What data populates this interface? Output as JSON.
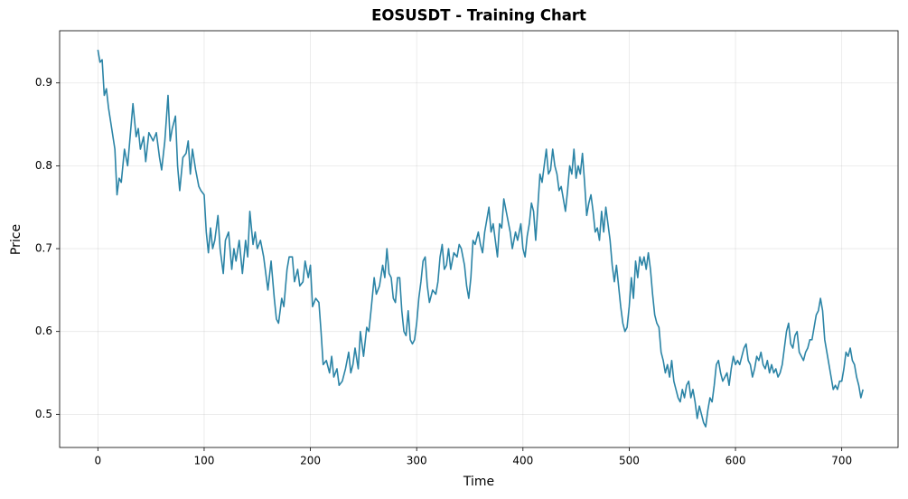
{
  "chart_data": {
    "type": "line",
    "title": "EOSUSDT - Training Chart",
    "x_label": "Time",
    "y_label": "Price",
    "color": "#2b84a6",
    "grid": true,
    "xlim": [
      -36,
      753
    ],
    "ylim": [
      0.46,
      0.963
    ],
    "xticks": [
      0,
      100,
      200,
      300,
      400,
      500,
      600,
      700
    ],
    "yticks": [
      0.5,
      0.6,
      0.7,
      0.8,
      0.9
    ],
    "x": [
      0,
      2,
      4,
      6,
      8,
      10,
      13,
      16,
      18,
      20,
      22,
      25,
      28,
      30,
      33,
      36,
      38,
      40,
      43,
      45,
      48,
      52,
      55,
      58,
      60,
      63,
      66,
      68,
      70,
      73,
      75,
      77,
      80,
      83,
      85,
      87,
      89,
      92,
      95,
      97,
      100,
      102,
      104,
      106,
      108,
      110,
      113,
      115,
      118,
      120,
      123,
      126,
      128,
      130,
      133,
      136,
      139,
      141,
      143,
      146,
      148,
      150,
      153,
      156,
      160,
      163,
      166,
      168,
      170,
      173,
      175,
      178,
      180,
      183,
      185,
      188,
      190,
      193,
      195,
      198,
      200,
      202,
      205,
      208,
      210,
      212,
      215,
      218,
      220,
      222,
      225,
      227,
      230,
      233,
      236,
      238,
      240,
      242,
      245,
      247,
      250,
      253,
      255,
      257,
      260,
      262,
      265,
      268,
      270,
      272,
      274,
      276,
      278,
      280,
      282,
      284,
      286,
      288,
      290,
      292,
      294,
      296,
      298,
      300,
      302,
      304,
      306,
      308,
      310,
      312,
      315,
      318,
      320,
      322,
      324,
      326,
      328,
      330,
      332,
      335,
      338,
      340,
      342,
      345,
      347,
      349,
      351,
      353,
      355,
      358,
      360,
      362,
      364,
      366,
      368,
      370,
      372,
      374,
      376,
      378,
      380,
      382,
      385,
      388,
      390,
      393,
      395,
      398,
      400,
      402,
      404,
      406,
      408,
      410,
      412,
      414,
      416,
      418,
      420,
      422,
      424,
      426,
      428,
      430,
      432,
      434,
      436,
      438,
      440,
      442,
      444,
      446,
      448,
      450,
      452,
      454,
      456,
      458,
      460,
      462,
      464,
      466,
      468,
      470,
      472,
      474,
      476,
      478,
      480,
      482,
      484,
      486,
      488,
      490,
      492,
      494,
      496,
      498,
      500,
      502,
      504,
      506,
      508,
      510,
      512,
      514,
      516,
      518,
      520,
      522,
      524,
      526,
      528,
      530,
      532,
      534,
      536,
      538,
      540,
      542,
      544,
      546,
      548,
      550,
      552,
      554,
      556,
      558,
      560,
      562,
      564,
      566,
      568,
      570,
      572,
      574,
      576,
      578,
      580,
      582,
      584,
      586,
      588,
      590,
      592,
      594,
      596,
      598,
      600,
      602,
      604,
      606,
      608,
      610,
      612,
      614,
      616,
      618,
      620,
      622,
      624,
      626,
      628,
      630,
      632,
      634,
      636,
      638,
      640,
      642,
      644,
      646,
      648,
      650,
      652,
      654,
      656,
      658,
      660,
      662,
      664,
      666,
      668,
      670,
      672,
      674,
      676,
      678,
      680,
      682,
      684,
      686,
      688,
      690,
      692,
      694,
      696,
      698,
      700,
      702,
      704,
      706,
      708,
      710,
      712,
      714,
      716,
      718,
      720
    ],
    "values": [
      0.94,
      0.925,
      0.928,
      0.885,
      0.893,
      0.87,
      0.845,
      0.82,
      0.765,
      0.785,
      0.78,
      0.82,
      0.8,
      0.83,
      0.875,
      0.835,
      0.845,
      0.82,
      0.835,
      0.805,
      0.84,
      0.83,
      0.84,
      0.81,
      0.795,
      0.83,
      0.885,
      0.83,
      0.845,
      0.86,
      0.8,
      0.77,
      0.81,
      0.815,
      0.83,
      0.79,
      0.82,
      0.795,
      0.775,
      0.77,
      0.765,
      0.72,
      0.695,
      0.725,
      0.7,
      0.71,
      0.74,
      0.7,
      0.67,
      0.71,
      0.72,
      0.675,
      0.7,
      0.685,
      0.71,
      0.67,
      0.71,
      0.69,
      0.745,
      0.705,
      0.72,
      0.7,
      0.71,
      0.69,
      0.65,
      0.685,
      0.64,
      0.615,
      0.61,
      0.64,
      0.63,
      0.675,
      0.69,
      0.69,
      0.66,
      0.675,
      0.655,
      0.66,
      0.685,
      0.665,
      0.68,
      0.63,
      0.64,
      0.635,
      0.6,
      0.56,
      0.565,
      0.55,
      0.57,
      0.545,
      0.555,
      0.535,
      0.54,
      0.555,
      0.575,
      0.55,
      0.56,
      0.58,
      0.555,
      0.6,
      0.57,
      0.605,
      0.6,
      0.625,
      0.665,
      0.645,
      0.655,
      0.68,
      0.665,
      0.7,
      0.67,
      0.665,
      0.64,
      0.635,
      0.665,
      0.665,
      0.625,
      0.6,
      0.595,
      0.625,
      0.59,
      0.585,
      0.59,
      0.61,
      0.64,
      0.66,
      0.685,
      0.69,
      0.655,
      0.635,
      0.65,
      0.645,
      0.66,
      0.69,
      0.705,
      0.675,
      0.68,
      0.7,
      0.675,
      0.695,
      0.69,
      0.705,
      0.7,
      0.68,
      0.655,
      0.64,
      0.665,
      0.71,
      0.705,
      0.72,
      0.705,
      0.695,
      0.72,
      0.735,
      0.75,
      0.72,
      0.73,
      0.71,
      0.69,
      0.73,
      0.725,
      0.76,
      0.74,
      0.72,
      0.7,
      0.72,
      0.71,
      0.73,
      0.7,
      0.69,
      0.715,
      0.73,
      0.755,
      0.745,
      0.71,
      0.75,
      0.79,
      0.78,
      0.8,
      0.82,
      0.79,
      0.795,
      0.82,
      0.8,
      0.79,
      0.77,
      0.775,
      0.76,
      0.745,
      0.77,
      0.8,
      0.79,
      0.82,
      0.785,
      0.8,
      0.79,
      0.815,
      0.78,
      0.74,
      0.755,
      0.765,
      0.745,
      0.72,
      0.725,
      0.71,
      0.745,
      0.72,
      0.75,
      0.73,
      0.71,
      0.68,
      0.66,
      0.68,
      0.655,
      0.63,
      0.61,
      0.6,
      0.605,
      0.63,
      0.665,
      0.64,
      0.685,
      0.665,
      0.69,
      0.68,
      0.69,
      0.675,
      0.695,
      0.675,
      0.645,
      0.62,
      0.61,
      0.605,
      0.575,
      0.565,
      0.55,
      0.56,
      0.545,
      0.565,
      0.54,
      0.53,
      0.52,
      0.515,
      0.53,
      0.52,
      0.535,
      0.54,
      0.52,
      0.53,
      0.515,
      0.495,
      0.51,
      0.5,
      0.49,
      0.485,
      0.505,
      0.52,
      0.515,
      0.535,
      0.56,
      0.565,
      0.55,
      0.54,
      0.545,
      0.55,
      0.535,
      0.555,
      0.57,
      0.56,
      0.565,
      0.56,
      0.57,
      0.58,
      0.585,
      0.565,
      0.56,
      0.545,
      0.555,
      0.57,
      0.565,
      0.575,
      0.56,
      0.555,
      0.565,
      0.55,
      0.56,
      0.55,
      0.555,
      0.545,
      0.55,
      0.56,
      0.58,
      0.6,
      0.61,
      0.585,
      0.58,
      0.595,
      0.6,
      0.575,
      0.57,
      0.565,
      0.575,
      0.58,
      0.59,
      0.59,
      0.605,
      0.62,
      0.625,
      0.64,
      0.625,
      0.59,
      0.575,
      0.56,
      0.545,
      0.53,
      0.535,
      0.53,
      0.54,
      0.54,
      0.555,
      0.575,
      0.57,
      0.58,
      0.565,
      0.56,
      0.545,
      0.535,
      0.52,
      0.53
    ]
  }
}
